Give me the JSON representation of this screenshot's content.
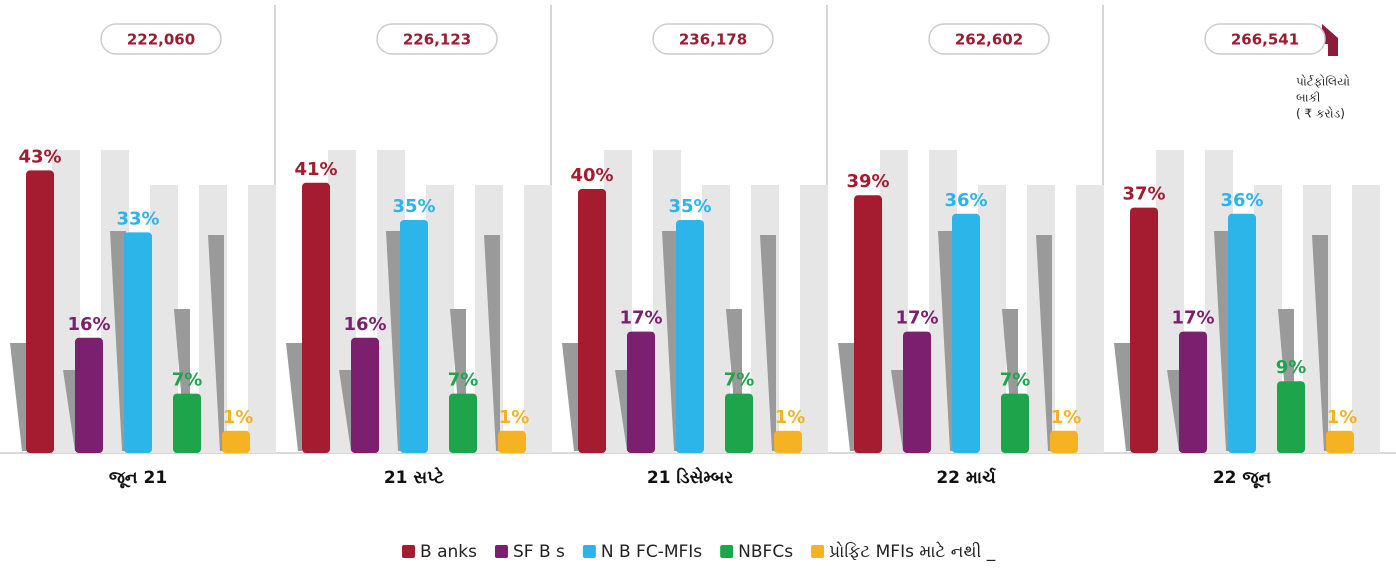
{
  "chart_data": {
    "type": "bar",
    "categories": [
      "જૂન 21",
      "21 સપ્ટે",
      "21 ડિસેમ્બર",
      "22 માર્ચ",
      "22 જૂન"
    ],
    "totals": [
      222060,
      226123,
      236178,
      262602,
      266541
    ],
    "totals_labels": [
      "222,060",
      "226,123",
      "236,178",
      "262,602",
      "266,541"
    ],
    "annotation": [
      "પોર્ટફોલિયો",
      "બાકી",
      "( ₹ કરોડ)"
    ],
    "series": [
      {
        "name": "B anks",
        "color": "#a51c30",
        "values": [
          43,
          41,
          40,
          39,
          37
        ],
        "value_labels": [
          "43%",
          "41%",
          "40%",
          "39%",
          "37%"
        ]
      },
      {
        "name": "SF B s",
        "color": "#7b1f6e",
        "values": [
          16,
          16,
          17,
          17,
          17
        ],
        "value_labels": [
          "16%",
          "16%",
          "17%",
          "17%",
          "17%"
        ]
      },
      {
        "name": "N B FC-MFIs",
        "color": "#2bb5e8",
        "values": [
          33,
          35,
          35,
          36,
          36
        ],
        "value_labels": [
          "33%",
          "35%",
          "35%",
          "36%",
          "36%"
        ]
      },
      {
        "name": "NBFCs",
        "color": "#1ea44b",
        "values": [
          7,
          7,
          7,
          7,
          9
        ],
        "value_labels": [
          "7%",
          "7%",
          "7%",
          "7%",
          "9%"
        ]
      },
      {
        "name": "પ્રોફિટ MFIs માટે નથી _",
        "color": "#f5b323",
        "values": [
          1,
          1,
          1,
          1,
          1
        ],
        "value_labels": [
          "1%",
          "1%",
          "1%",
          "1%",
          "1%"
        ]
      }
    ]
  }
}
